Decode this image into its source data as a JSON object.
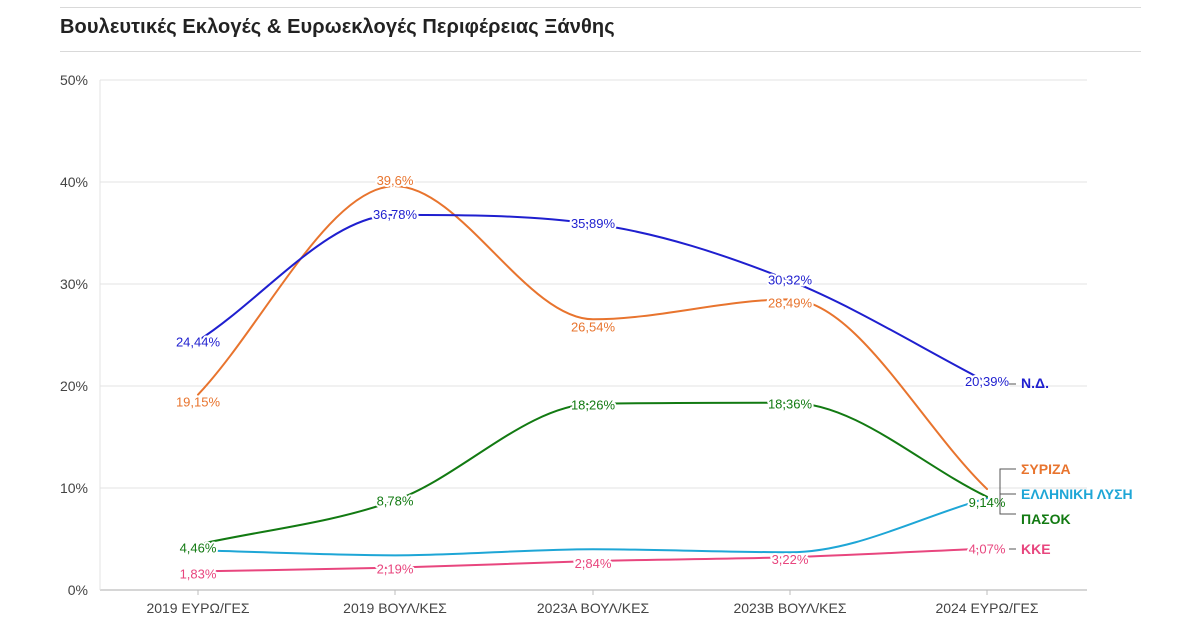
{
  "title": "Βουλευτικές Εκλογές & Ευρωεκλογές Περιφέρειας Ξάνθης",
  "chart_data": {
    "type": "line",
    "categories": [
      "2019 ΕΥΡΩ/ΓΕΣ",
      "2019 ΒΟΥΛ/ΚΕΣ",
      "2023Α ΒΟΥΛ/ΚΕΣ",
      "2023Β ΒΟΥΛ/ΚΕΣ",
      "2024 ΕΥΡΩ/ΓΕΣ"
    ],
    "ylim": [
      0,
      50
    ],
    "y_ticks": [
      0,
      10,
      20,
      30,
      40,
      50
    ],
    "y_tick_labels": [
      "0%",
      "10%",
      "20%",
      "30%",
      "40%",
      "50%"
    ],
    "grid": true,
    "legend": "direct labels at right end of lines",
    "series": [
      {
        "name": "Ν.Δ.",
        "color": "#1f1fcf",
        "values": [
          24.44,
          36.78,
          35.89,
          30.32,
          20.39
        ],
        "labels": [
          "24,44%",
          "36,78%",
          "35,89%",
          "30,32%",
          "20,39%"
        ]
      },
      {
        "name": "ΣΥΡΙΖΑ",
        "color": "#e8742e",
        "values": [
          19.15,
          39.6,
          26.54,
          28.49,
          9.9
        ],
        "labels": [
          "19,15%",
          "39,6%",
          "26,54%",
          "28,49%",
          ""
        ]
      },
      {
        "name": "ΕΛΛΗΝΙΚΗ ΛΥΣΗ",
        "color": "#1ea6d6",
        "values": [
          3.9,
          3.4,
          4.0,
          3.7,
          9.0
        ],
        "labels": [
          "",
          "",
          "",
          "",
          ""
        ]
      },
      {
        "name": "ΠΑΣΟΚ",
        "color": "#127a12",
        "values": [
          4.46,
          8.78,
          18.26,
          18.36,
          9.14
        ],
        "labels": [
          "4,46%",
          "8,78%",
          "18,26%",
          "18,36%",
          "9,14%"
        ]
      },
      {
        "name": "ΚΚΕ",
        "color": "#e8467e",
        "values": [
          1.83,
          2.19,
          2.84,
          3.22,
          4.07
        ],
        "labels": [
          "1,83%",
          "2,19%",
          "2,84%",
          "3,22%",
          "4,07%"
        ]
      }
    ]
  }
}
